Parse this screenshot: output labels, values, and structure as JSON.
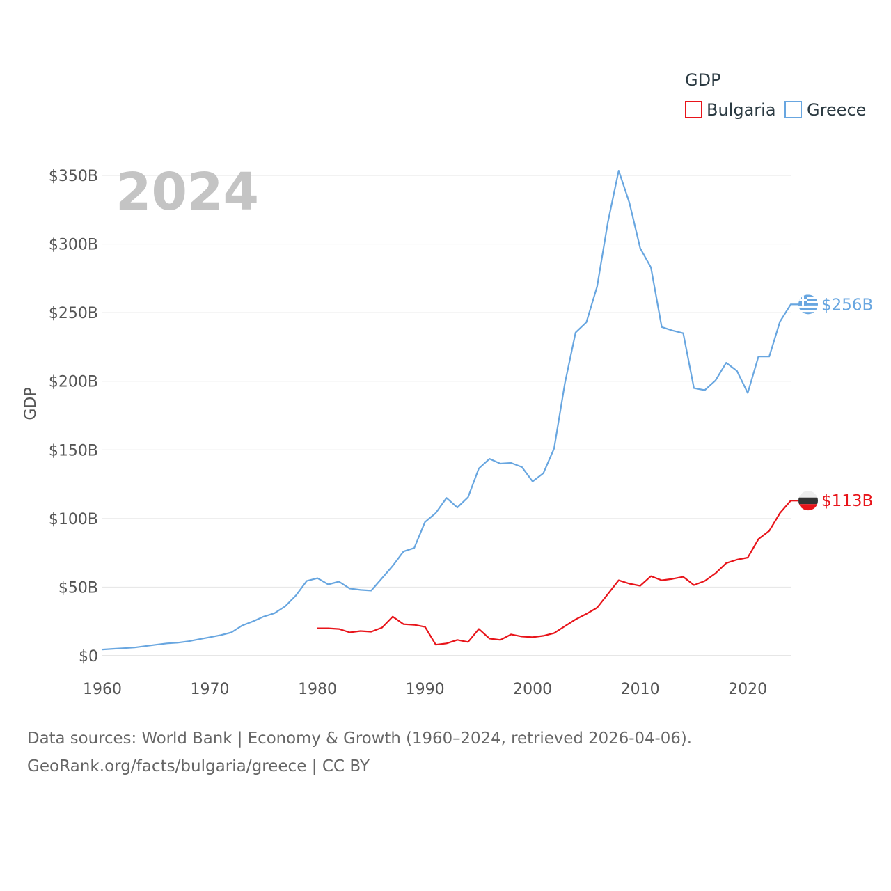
{
  "chart_data": {
    "type": "line",
    "title": "GDP",
    "year_label": "2024",
    "ylabel": "GDP",
    "xlabel": "",
    "xlim": [
      1960,
      2024
    ],
    "ylim": [
      0,
      350
    ],
    "x_ticks": [
      "1960",
      "1970",
      "1980",
      "1990",
      "2000",
      "2010",
      "2020"
    ],
    "y_ticks": [
      {
        "value": 0,
        "label": "$0"
      },
      {
        "value": 50,
        "label": "$50B"
      },
      {
        "value": 100,
        "label": "$100B"
      },
      {
        "value": 150,
        "label": "$150B"
      },
      {
        "value": 200,
        "label": "$200B"
      },
      {
        "value": 250,
        "label": "$250B"
      },
      {
        "value": 300,
        "label": "$300B"
      },
      {
        "value": 350,
        "label": "$350B"
      }
    ],
    "units": "billions USD",
    "series": [
      {
        "name": "Bulgaria",
        "color": "#e8141a",
        "end_label": "$113B",
        "flag_icon": "bulgaria-flag-icon",
        "x": [
          1980,
          1981,
          1982,
          1983,
          1984,
          1985,
          1986,
          1987,
          1988,
          1989,
          1990,
          1991,
          1992,
          1993,
          1994,
          1995,
          1996,
          1997,
          1998,
          1999,
          2000,
          2001,
          2002,
          2003,
          2004,
          2005,
          2006,
          2007,
          2008,
          2009,
          2010,
          2011,
          2012,
          2013,
          2014,
          2015,
          2016,
          2017,
          2018,
          2019,
          2020,
          2021,
          2022,
          2023,
          2024
        ],
        "values": [
          20,
          20,
          19.5,
          17,
          18,
          17.5,
          20.5,
          28.5,
          23,
          22.5,
          21,
          8,
          9,
          11.5,
          10,
          19.5,
          12.5,
          11.5,
          15.5,
          14,
          13.5,
          14.5,
          16.5,
          21.5,
          26.5,
          30.5,
          35,
          45,
          55,
          52.5,
          51,
          58,
          55,
          56,
          57.5,
          51.5,
          54.5,
          60,
          67.5,
          70,
          71.5,
          85,
          91,
          104,
          113
        ]
      },
      {
        "name": "Greece",
        "color": "#68a6e0",
        "end_label": "$256B",
        "flag_icon": "greece-flag-icon",
        "x": [
          1960,
          1961,
          1962,
          1963,
          1964,
          1965,
          1966,
          1967,
          1968,
          1969,
          1970,
          1971,
          1972,
          1973,
          1974,
          1975,
          1976,
          1977,
          1978,
          1979,
          1980,
          1981,
          1982,
          1983,
          1984,
          1985,
          1986,
          1987,
          1988,
          1989,
          1990,
          1991,
          1992,
          1993,
          1994,
          1995,
          1996,
          1997,
          1998,
          1999,
          2000,
          2001,
          2002,
          2003,
          2004,
          2005,
          2006,
          2007,
          2008,
          2009,
          2010,
          2011,
          2012,
          2013,
          2014,
          2015,
          2016,
          2017,
          2018,
          2019,
          2020,
          2021,
          2022,
          2023,
          2024
        ],
        "values": [
          4.5,
          5,
          5.5,
          6,
          7,
          8,
          9,
          9.5,
          10.5,
          12,
          13.5,
          15,
          17,
          22,
          25,
          28.5,
          31,
          36,
          44,
          54.5,
          56.5,
          52,
          54,
          49,
          48,
          47.5,
          56.5,
          65.5,
          76,
          78.5,
          97.5,
          104,
          115,
          108,
          115.5,
          136.5,
          143.5,
          140,
          140.5,
          137.5,
          127,
          133,
          151,
          198.5,
          235.5,
          243,
          269,
          316,
          353.5,
          330,
          297,
          283,
          239.5,
          237,
          235,
          195,
          193.5,
          200.5,
          213.5,
          207.5,
          191.5,
          218,
          218,
          243.5,
          256
        ]
      }
    ]
  },
  "legend": {
    "title": "GDP",
    "items": [
      "Bulgaria",
      "Greece"
    ]
  },
  "source": {
    "line1": "Data sources: World Bank | Economy & Growth (1960–2024, retrieved 2026-04-06).",
    "line2": "GeoRank.org/facts/bulgaria/greece | CC BY"
  }
}
